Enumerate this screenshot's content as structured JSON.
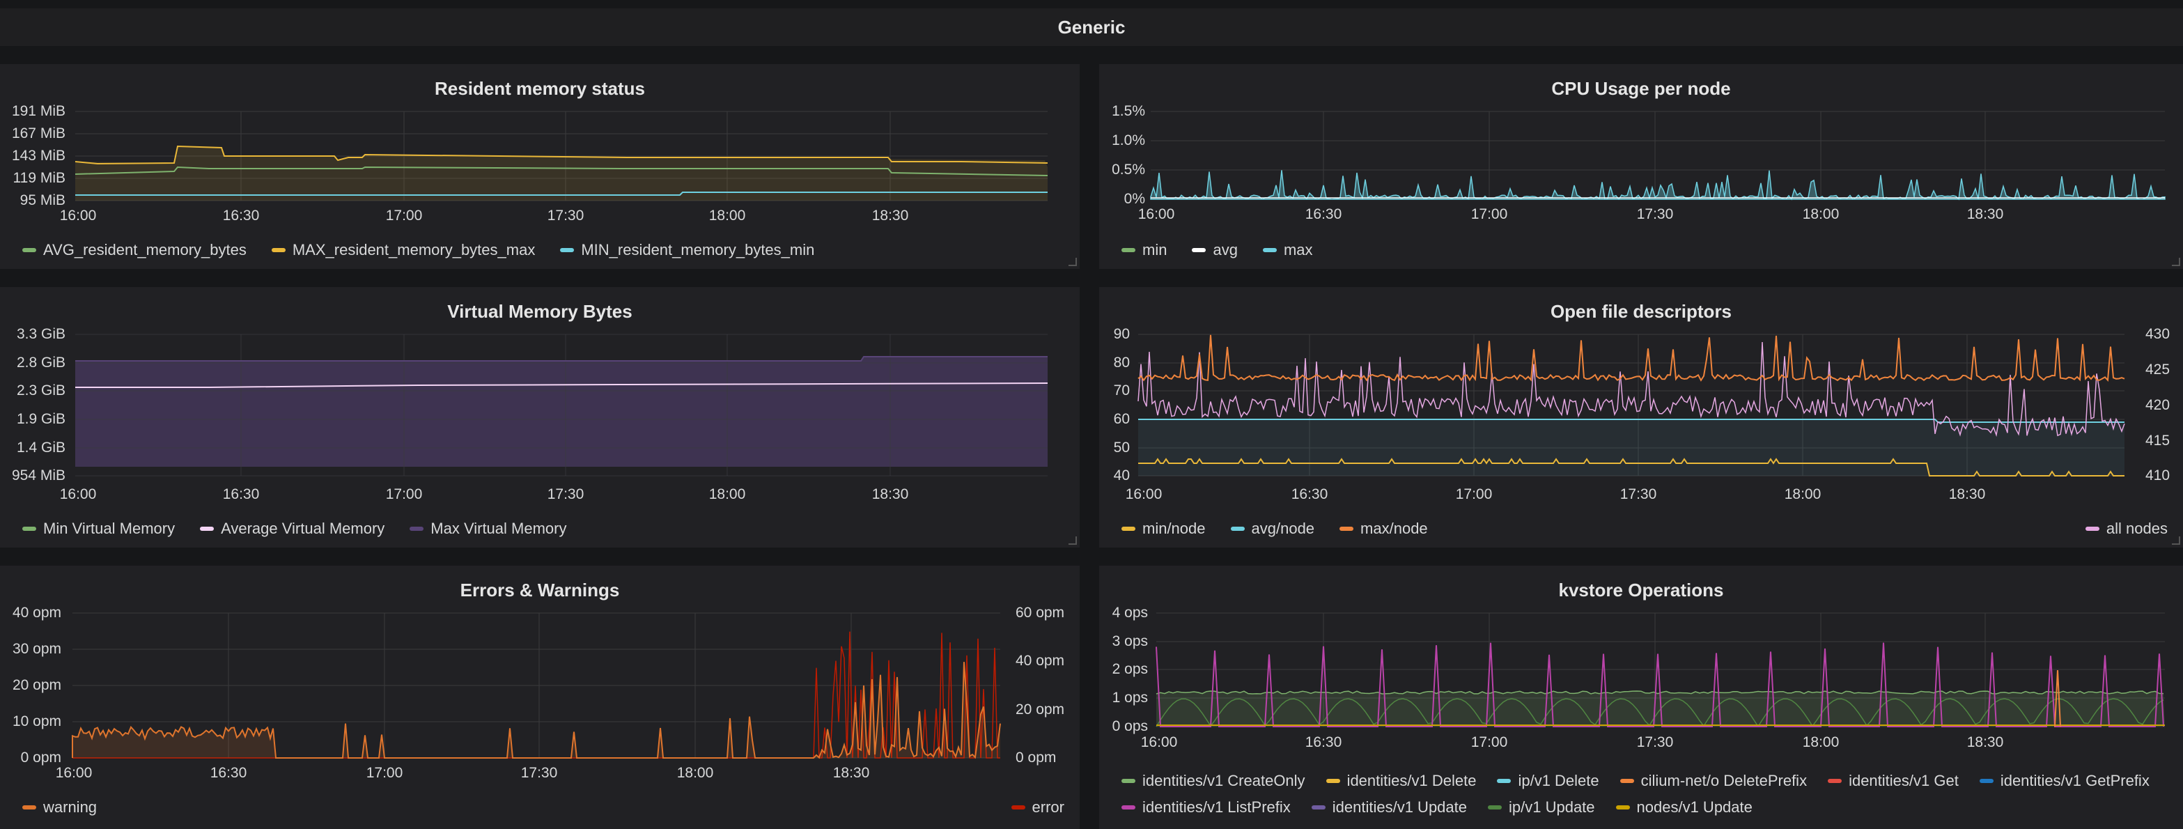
{
  "row": {
    "title": "Generic"
  },
  "panels": {
    "resident": {
      "title": "Resident memory status",
      "yticks": [
        "191 MiB",
        "167 MiB",
        "143 MiB",
        "119 MiB",
        "95 MiB"
      ],
      "xticks": [
        "16:00",
        "16:30",
        "17:00",
        "17:30",
        "18:00",
        "18:30"
      ],
      "legend": [
        "AVG_resident_memory_bytes",
        "MAX_resident_memory_bytes_max",
        "MIN_resident_memory_bytes_min"
      ],
      "colors": [
        "#7eb26d",
        "#eab839",
        "#6ed0e0"
      ]
    },
    "cpu": {
      "title": "CPU Usage per node",
      "yticks": [
        "1.5%",
        "1.0%",
        "0.5%",
        "0%"
      ],
      "xticks": [
        "16:00",
        "16:30",
        "17:00",
        "17:30",
        "18:00",
        "18:30"
      ],
      "legend": [
        "min",
        "avg",
        "max"
      ],
      "colors": [
        "#7eb26d",
        "#ffffff",
        "#6ed0e0"
      ]
    },
    "virtual": {
      "title": "Virtual Memory Bytes",
      "yticks": [
        "3.3 GiB",
        "2.8 GiB",
        "2.3 GiB",
        "1.9 GiB",
        "1.4 GiB",
        "954 MiB"
      ],
      "xticks": [
        "16:00",
        "16:30",
        "17:00",
        "17:30",
        "18:00",
        "18:30"
      ],
      "legend": [
        "Min Virtual Memory",
        "Average Virtual Memory",
        "Max Virtual Memory"
      ],
      "colors": [
        "#7eb26d",
        "#f4d5f5",
        "#584477"
      ]
    },
    "fds": {
      "title": "Open file descriptors",
      "yticks": [
        "90",
        "80",
        "70",
        "60",
        "50",
        "40"
      ],
      "yticks_right": [
        "430",
        "425",
        "420",
        "415",
        "410"
      ],
      "xticks": [
        "16:00",
        "16:30",
        "17:00",
        "17:30",
        "18:00",
        "18:30"
      ],
      "legend": [
        "min/node",
        "avg/node",
        "max/node"
      ],
      "legend_right": "all nodes",
      "colors": [
        "#eab839",
        "#6ed0e0",
        "#ef843c",
        "#e5a8e2"
      ]
    },
    "errors": {
      "title": "Errors & Warnings",
      "yticks": [
        "40 opm",
        "30 opm",
        "20 opm",
        "10 opm",
        "0 opm"
      ],
      "yticks_right": [
        "60 opm",
        "40 opm",
        "20 opm",
        "0 opm"
      ],
      "xticks": [
        "16:00",
        "16:30",
        "17:00",
        "17:30",
        "18:00",
        "18:30"
      ],
      "legend": [
        "warning"
      ],
      "legend_right": "error",
      "colors": [
        "#e0752d",
        "#bf1b00"
      ]
    },
    "kvstore": {
      "title": "kvstore Operations",
      "yticks": [
        "4 ops",
        "3 ops",
        "2 ops",
        "1 ops",
        "0 ops"
      ],
      "xticks": [
        "16:00",
        "16:30",
        "17:00",
        "17:30",
        "18:00",
        "18:30"
      ],
      "legend": [
        "identities/v1 CreateOnly",
        "identities/v1 Delete",
        "ip/v1 Delete",
        "cilium-net/o DeletePrefix",
        "identities/v1 Get",
        "identities/v1 GetPrefix",
        "identities/v1 ListPrefix",
        "identities/v1 Update",
        "ip/v1 Update",
        "nodes/v1 Update"
      ],
      "colors": [
        "#7eb26d",
        "#eab839",
        "#6ed0e0",
        "#ef843c",
        "#e24d42",
        "#1f78c1",
        "#ba43a9",
        "#705da0",
        "#508642",
        "#cca300"
      ]
    }
  }
}
